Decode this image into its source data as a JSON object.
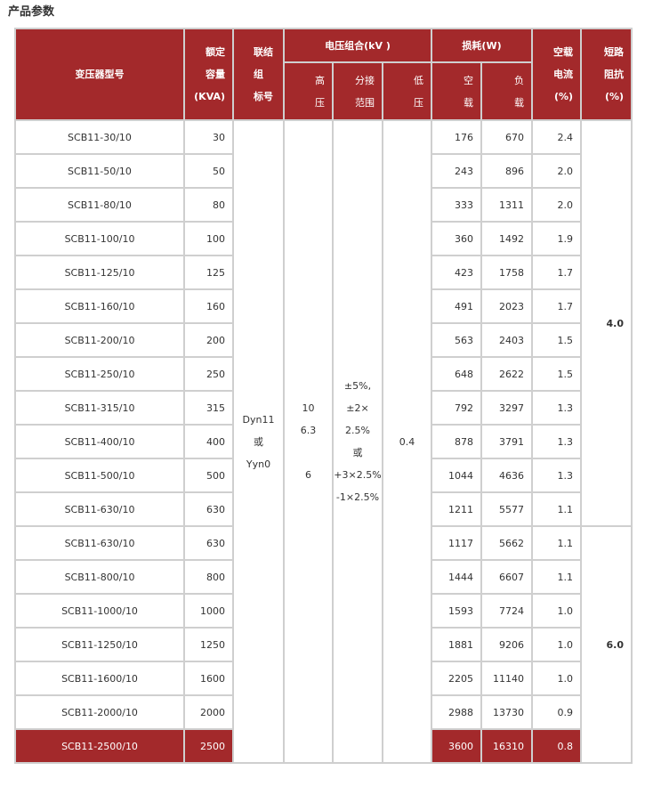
{
  "title": "产品参数",
  "header": {
    "model": "变压器型号",
    "capacity": "额定\n容量\n(KVA)",
    "connection": "联结\n组\n标号",
    "voltage_group": "电压组合(kV )",
    "hv": "高\n压",
    "tap": "分接\n范围",
    "lv": "低\n压",
    "loss": "损耗(W)",
    "no_load": "空\n载",
    "load": "负\n载",
    "no_load_current": "空载\n电流\n(%)",
    "impedance": "短路\n阻抗\n(%)"
  },
  "shared": {
    "connection": "Dyn11\n或\nYyn0",
    "hv": "10\n6.3\n\n6",
    "tap": "±5%,\n±2×\n2.5%\n或\n+3×2.5%\n-1×2.5%",
    "lv": "0.4",
    "impedance_a": "4.0",
    "impedance_b": "6.0"
  },
  "rows": [
    [
      "SCB11-30/10",
      "30",
      "176",
      "670",
      "2.4"
    ],
    [
      "SCB11-50/10",
      "50",
      "243",
      "896",
      "2.0"
    ],
    [
      "SCB11-80/10",
      "80",
      "333",
      "1311",
      "2.0"
    ],
    [
      "SCB11-100/10",
      "100",
      "360",
      "1492",
      "1.9"
    ],
    [
      "SCB11-125/10",
      "125",
      "423",
      "1758",
      "1.7"
    ],
    [
      "SCB11-160/10",
      "160",
      "491",
      "2023",
      "1.7"
    ],
    [
      "SCB11-200/10",
      "200",
      "563",
      "2403",
      "1.5"
    ],
    [
      "SCB11-250/10",
      "250",
      "648",
      "2622",
      "1.5"
    ],
    [
      "SCB11-315/10",
      "315",
      "792",
      "3297",
      "1.3"
    ],
    [
      "SCB11-400/10",
      "400",
      "878",
      "3791",
      "1.3"
    ],
    [
      "SCB11-500/10",
      "500",
      "1044",
      "4636",
      "1.3"
    ],
    [
      "SCB11-630/10",
      "630",
      "1211",
      "5577",
      "1.1"
    ],
    [
      "SCB11-630/10",
      "630",
      "1117",
      "5662",
      "1.1"
    ],
    [
      "SCB11-800/10",
      "800",
      "1444",
      "6607",
      "1.1"
    ],
    [
      "SCB11-1000/10",
      "1000",
      "1593",
      "7724",
      "1.0"
    ],
    [
      "SCB11-1250/10",
      "1250",
      "1881",
      "9206",
      "1.0"
    ],
    [
      "SCB11-1600/10",
      "1600",
      "2205",
      "11140",
      "1.0"
    ],
    [
      "SCB11-2000/10",
      "2000",
      "2988",
      "13730",
      "0.9"
    ],
    [
      "SCB11-2500/10",
      "2500",
      "3600",
      "16310",
      "0.8"
    ]
  ],
  "colors": {
    "header_bg": "#a3292b",
    "border": "#cfcfcf"
  }
}
